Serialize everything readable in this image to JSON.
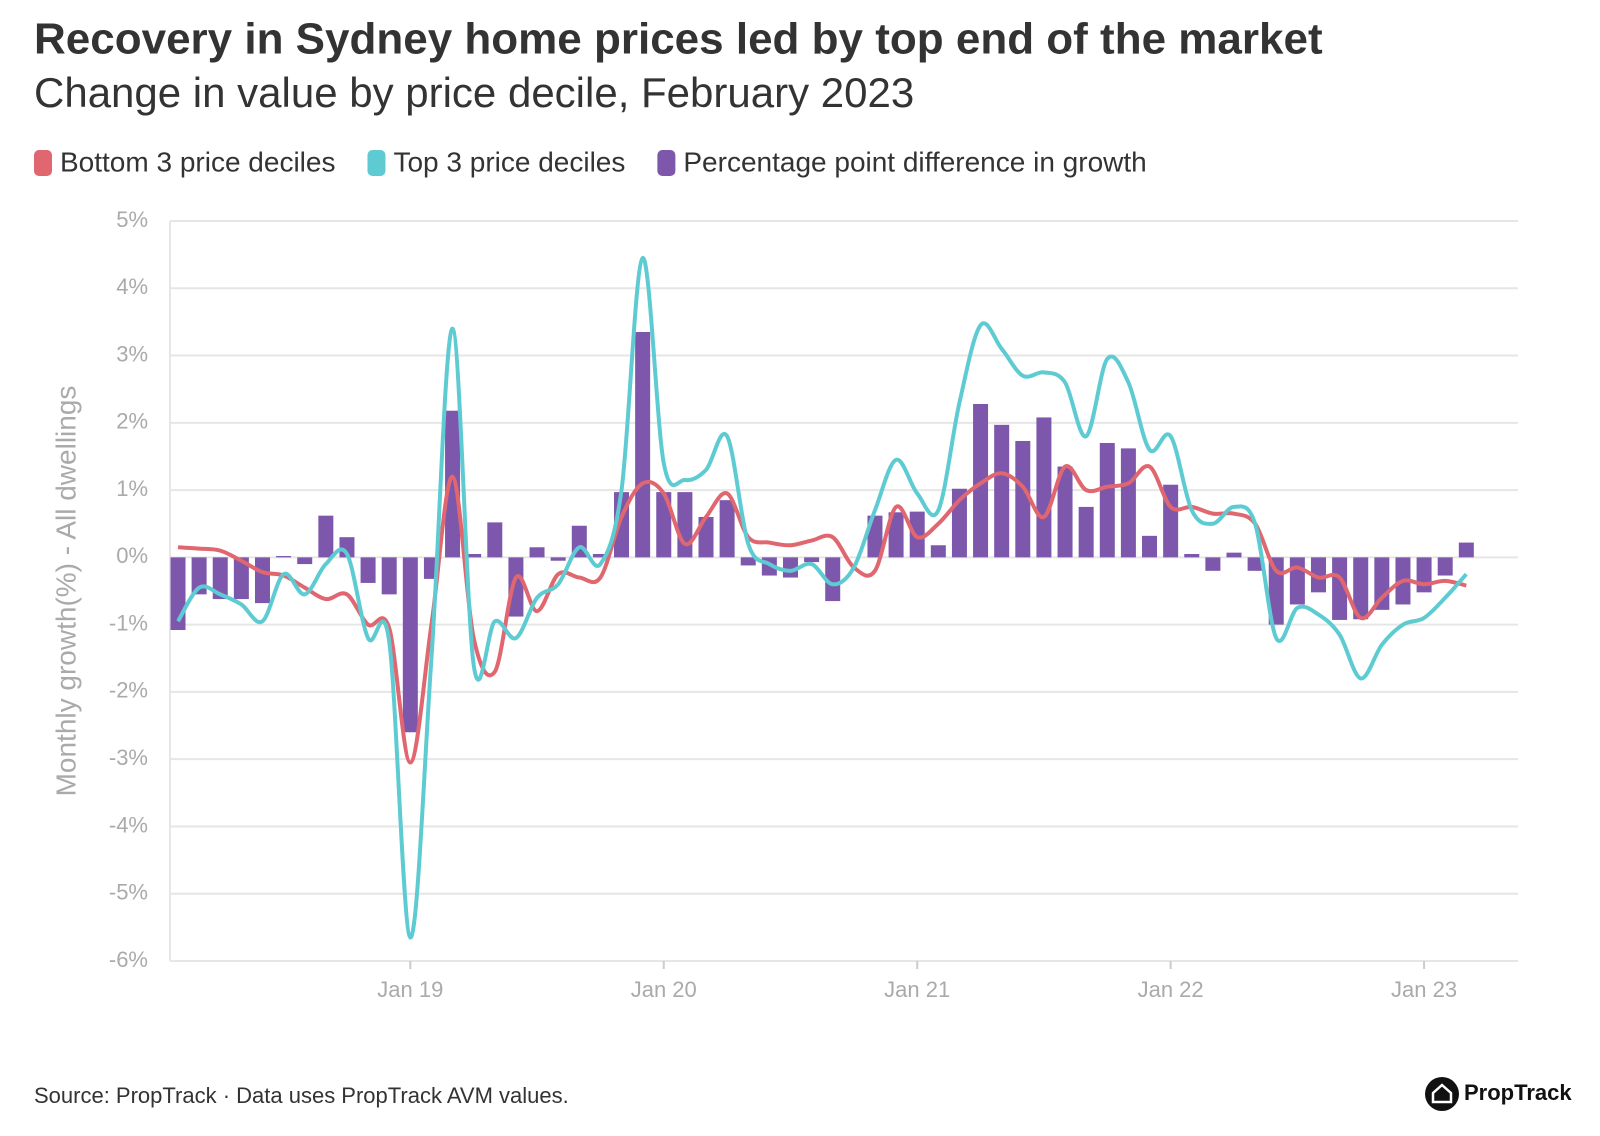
{
  "chart_data": {
    "type": "bar_line",
    "title": "Recovery in Sydney home prices led by top end of the market",
    "subtitle": "Change in value by price decile, February 2023",
    "y_label": "Monthly growth(%) - All dwellings",
    "source": "Source: PropTrack · Data uses PropTrack AVM values.",
    "brand": "PropTrack",
    "categories": [
      null,
      null,
      null,
      null,
      null,
      null,
      null,
      null,
      null,
      null,
      null,
      "Jan 19",
      null,
      null,
      null,
      null,
      null,
      null,
      null,
      null,
      null,
      null,
      null,
      "Jan 20",
      null,
      null,
      null,
      null,
      null,
      null,
      null,
      null,
      null,
      null,
      null,
      "Jan 21",
      null,
      null,
      null,
      null,
      null,
      null,
      null,
      null,
      null,
      null,
      null,
      "Jan 22",
      null,
      null,
      null,
      null,
      null,
      null,
      null,
      null,
      null,
      null,
      null,
      "Jan 23",
      null,
      null
    ],
    "series": [
      {
        "name": "Bottom 3 price deciles",
        "kind": "line",
        "color": "#e0666f",
        "values": [
          0.15,
          0.13,
          0.1,
          -0.05,
          -0.22,
          -0.27,
          -0.45,
          -0.62,
          -0.55,
          -1.0,
          -1.05,
          -3.05,
          -1.0,
          1.2,
          -1.2,
          -1.7,
          -0.3,
          -0.8,
          -0.25,
          -0.3,
          -0.3,
          0.6,
          1.1,
          0.95,
          0.2,
          0.6,
          0.95,
          0.3,
          0.22,
          0.18,
          0.25,
          0.3,
          -0.15,
          -0.2,
          0.75,
          0.3,
          0.5,
          0.85,
          1.1,
          1.25,
          1.05,
          0.6,
          1.35,
          1.0,
          1.05,
          1.1,
          1.35,
          0.75,
          0.75,
          0.65,
          0.65,
          0.5,
          -0.2,
          -0.15,
          -0.3,
          -0.3,
          -0.9,
          -0.6,
          -0.35,
          -0.4,
          -0.35,
          -0.42
        ]
      },
      {
        "name": "Top 3 price deciles",
        "kind": "line",
        "color": "#5ecbd3",
        "values": [
          -0.95,
          -0.45,
          -0.55,
          -0.7,
          -0.95,
          -0.25,
          -0.55,
          -0.1,
          0.05,
          -1.2,
          -1.25,
          -5.65,
          -1.5,
          3.4,
          -1.6,
          -0.95,
          -1.2,
          -0.6,
          -0.4,
          0.15,
          -0.1,
          1.0,
          4.45,
          1.4,
          1.15,
          1.3,
          1.8,
          0.2,
          -0.1,
          -0.2,
          -0.1,
          -0.4,
          -0.15,
          0.7,
          1.45,
          0.95,
          0.7,
          2.3,
          3.45,
          3.1,
          2.7,
          2.75,
          2.6,
          1.8,
          2.95,
          2.6,
          1.6,
          1.8,
          0.7,
          0.5,
          0.75,
          0.5,
          -1.2,
          -0.75,
          -0.85,
          -1.15,
          -1.8,
          -1.3,
          -1.0,
          -0.9,
          -0.6,
          -0.25
        ]
      },
      {
        "name": "Percentage point difference in growth",
        "kind": "bar",
        "color": "#7d57ab",
        "values": [
          -1.08,
          -0.55,
          -0.62,
          -0.62,
          -0.68,
          0.02,
          -0.1,
          0.62,
          0.3,
          -0.38,
          -0.55,
          -2.6,
          -0.32,
          2.18,
          0.05,
          0.52,
          -0.88,
          0.15,
          -0.05,
          0.47,
          0.05,
          0.97,
          3.35,
          0.97,
          0.97,
          0.6,
          0.85,
          -0.12,
          -0.27,
          -0.3,
          -0.07,
          -0.65,
          0.0,
          0.62,
          0.67,
          0.68,
          0.18,
          1.02,
          2.28,
          1.97,
          1.73,
          2.08,
          1.35,
          0.75,
          1.7,
          1.62,
          0.32,
          1.08,
          0.05,
          -0.2,
          0.07,
          -0.2,
          -1.0,
          -0.7,
          -0.52,
          -0.93,
          -0.92,
          -0.78,
          -0.7,
          -0.52,
          -0.27,
          0.22
        ]
      }
    ],
    "ylim": [
      -6,
      5
    ],
    "yticks": [
      {
        "value": -6,
        "label": "-6%"
      },
      {
        "value": -5,
        "label": "-5%"
      },
      {
        "value": -4,
        "label": "-4%"
      },
      {
        "value": -3,
        "label": "-3%"
      },
      {
        "value": -2,
        "label": "-2%"
      },
      {
        "value": -1,
        "label": "-1%"
      },
      {
        "value": 0,
        "label": "0%"
      },
      {
        "value": 1,
        "label": "1%"
      },
      {
        "value": 2,
        "label": "2%"
      },
      {
        "value": 3,
        "label": "3%"
      },
      {
        "value": 4,
        "label": "4%"
      },
      {
        "value": 5,
        "label": "5%"
      }
    ],
    "grid": true
  }
}
